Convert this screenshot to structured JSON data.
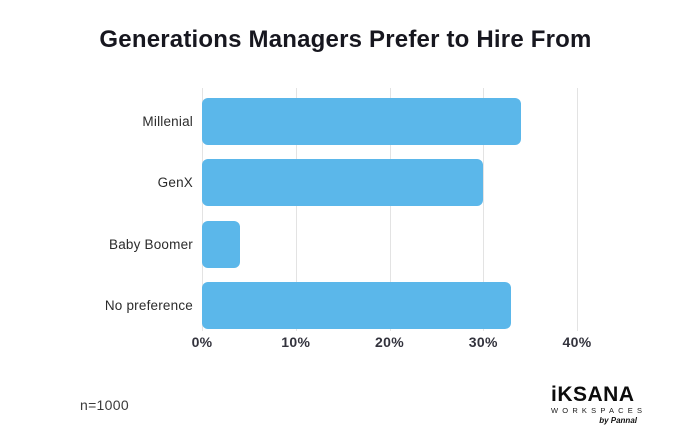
{
  "title": "Generations Managers Prefer to Hire From",
  "chart_data": {
    "type": "bar",
    "orientation": "horizontal",
    "title": "Generations Managers Prefer to Hire From",
    "categories": [
      "Millenial",
      "GenX",
      "Baby Boomer",
      "No preference"
    ],
    "values": [
      34,
      30,
      4,
      33
    ],
    "unit": "%",
    "xlim": [
      0,
      40
    ],
    "x_tick_labels": [
      "0%",
      "10%",
      "20%",
      "30%",
      "40%"
    ],
    "x_tick_values": [
      0,
      10,
      20,
      30,
      40
    ],
    "grid": "vertical",
    "bar_color": "#5bb7ea",
    "gridline_color": "#e3e3e3"
  },
  "footer": {
    "sample_size": "n=1000",
    "logo": {
      "brand": "iKSANA",
      "subtitle": "WORKSPACES",
      "byline": "by Pannal"
    }
  }
}
